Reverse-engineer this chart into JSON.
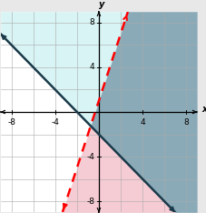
{
  "xlim": [
    -9,
    9
  ],
  "ylim": [
    -9,
    9
  ],
  "xticks": [
    -8,
    -4,
    4,
    8
  ],
  "yticks": [
    -8,
    -4,
    4,
    8
  ],
  "line1": {
    "slope": 3,
    "intercept": 1,
    "color": "#ff0000"
  },
  "line2": {
    "slope": -1,
    "intercept": -2,
    "color": "#1a3a4a"
  },
  "shade_gray": {
    "color": "#8aaab8",
    "alpha": 1.0
  },
  "shade_cyan": {
    "color": "#d8f4f4",
    "alpha": 1.0
  },
  "shade_pink": {
    "color": "#f5ccd4",
    "alpha": 1.0
  },
  "background": "#e8e8e8",
  "plot_bg": "#ffffff",
  "figsize": [
    2.28,
    2.34
  ],
  "dpi": 100,
  "tick_fontsize": 6.5
}
